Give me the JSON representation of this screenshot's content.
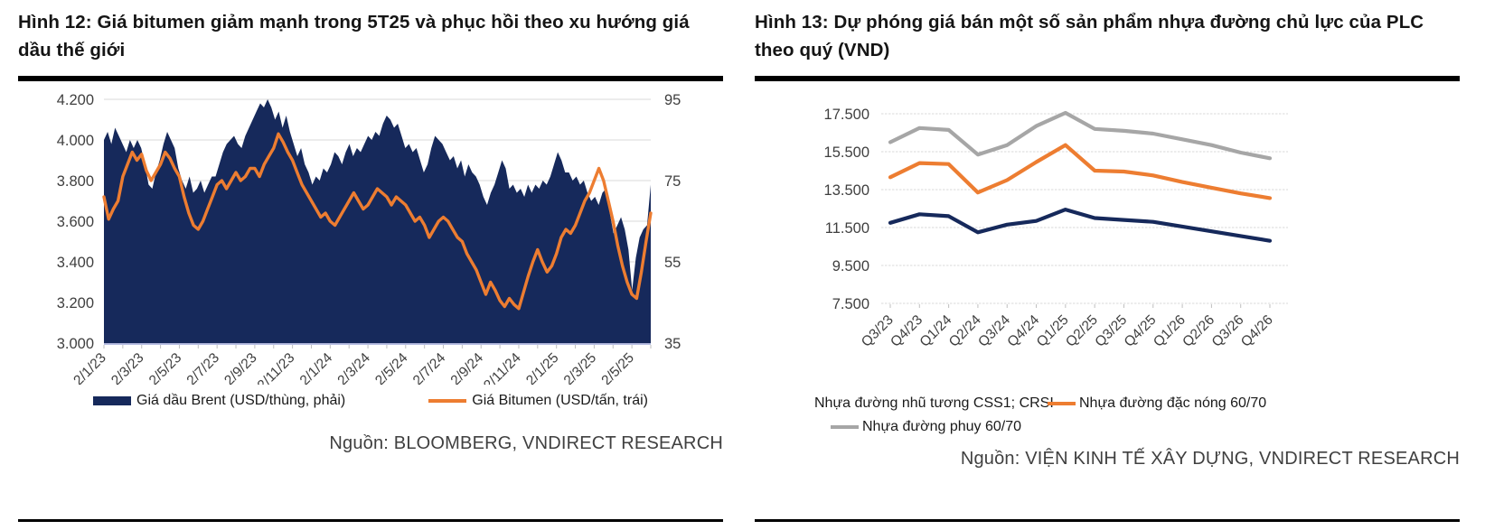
{
  "chart_data": [
    {
      "type": "area",
      "title": "Hình 12: Giá bitumen giảm mạnh trong 5T25 và phục hồi theo xu hướng giá dầu thế giới",
      "source": "Nguồn: BLOOMBERG, VNDIRECT RESEARCH",
      "x_tick_labels": [
        "2/1/23",
        "2/3/23",
        "2/5/23",
        "2/7/23",
        "2/9/23",
        "2/11/23",
        "2/1/24",
        "2/3/24",
        "2/5/24",
        "2/7/24",
        "2/9/24",
        "2/11/24",
        "2/1/25",
        "2/3/25",
        "2/5/25"
      ],
      "left_axis": {
        "labels": [
          "4.200",
          "4.000",
          "3.800",
          "3.600",
          "3.400",
          "3.200",
          "3.000"
        ],
        "min": 3000,
        "max": 4200
      },
      "right_axis": {
        "labels": [
          "95",
          "75",
          "55",
          "35"
        ],
        "min": 35,
        "max": 95
      },
      "grid": true,
      "legend_position": "bottom",
      "series": [
        {
          "name": "Giá dầu Brent (USD/thùng, phải)",
          "type": "area",
          "axis": "right",
          "color": "#16295B",
          "values": [
            85,
            87,
            84,
            88,
            86,
            84,
            82,
            85,
            83,
            85,
            83,
            79,
            74,
            73,
            77,
            80,
            84,
            87,
            85,
            83,
            78,
            75,
            73,
            76,
            72,
            73,
            75,
            72,
            74,
            76,
            76,
            79,
            82,
            84,
            85,
            86,
            84,
            83,
            86,
            88,
            90,
            92,
            94,
            93,
            95,
            93,
            90,
            92,
            88,
            91,
            87,
            84,
            81,
            83,
            79,
            77,
            74,
            76,
            75,
            78,
            77,
            79,
            82,
            81,
            79,
            82,
            84,
            81,
            83,
            82,
            84,
            86,
            85,
            87,
            86,
            89,
            91,
            90,
            88,
            89,
            86,
            83,
            84,
            82,
            83,
            80,
            77,
            79,
            83,
            86,
            85,
            84,
            82,
            80,
            81,
            78,
            80,
            76,
            79,
            77,
            76,
            74,
            71,
            69,
            72,
            74,
            77,
            80,
            78,
            73,
            74,
            72,
            73,
            71,
            74,
            72,
            74,
            73,
            75,
            74,
            76,
            79,
            82,
            80,
            77,
            77,
            75,
            76,
            74,
            75,
            72,
            70,
            71,
            69,
            72,
            73,
            67,
            62,
            64,
            66,
            63,
            58,
            48,
            56,
            61,
            63,
            64,
            74
          ]
        },
        {
          "name": "Giá Bitumen (USD/tấn, trái)",
          "type": "line",
          "axis": "left",
          "color": "#ED7D31",
          "values": [
            3720,
            3610,
            3660,
            3700,
            3820,
            3880,
            3940,
            3900,
            3930,
            3850,
            3800,
            3840,
            3880,
            3940,
            3910,
            3860,
            3820,
            3720,
            3640,
            3580,
            3560,
            3600,
            3660,
            3720,
            3780,
            3800,
            3760,
            3800,
            3840,
            3800,
            3820,
            3860,
            3860,
            3820,
            3880,
            3920,
            3960,
            4030,
            3990,
            3940,
            3900,
            3840,
            3780,
            3740,
            3700,
            3660,
            3620,
            3640,
            3600,
            3580,
            3620,
            3660,
            3700,
            3740,
            3700,
            3660,
            3680,
            3720,
            3760,
            3740,
            3720,
            3680,
            3720,
            3700,
            3680,
            3640,
            3600,
            3620,
            3580,
            3520,
            3560,
            3600,
            3620,
            3600,
            3560,
            3520,
            3500,
            3440,
            3400,
            3360,
            3300,
            3240,
            3300,
            3260,
            3210,
            3180,
            3220,
            3190,
            3170,
            3250,
            3330,
            3400,
            3460,
            3400,
            3350,
            3380,
            3440,
            3520,
            3560,
            3540,
            3580,
            3640,
            3700,
            3740,
            3800,
            3860,
            3800,
            3700,
            3600,
            3480,
            3380,
            3300,
            3240,
            3220,
            3350,
            3500,
            3640
          ]
        }
      ]
    },
    {
      "type": "line",
      "title": "Hình 13: Dự phóng giá bán một số sản phẩm nhựa đường chủ lực của PLC theo quý (VND)",
      "source": "Nguồn: VIỆN KINH TẾ XÂY DỰNG, VNDIRECT RESEARCH",
      "categories": [
        "Q3/23",
        "Q4/23",
        "Q1/24",
        "Q2/24",
        "Q3/24",
        "Q4/24",
        "Q1/25",
        "Q2/25",
        "Q3/25",
        "Q4/25",
        "Q1/26",
        "Q2/26",
        "Q3/26",
        "Q4/26"
      ],
      "y_axis": {
        "labels": [
          "17.500",
          "15.500",
          "13.500",
          "11.500",
          "9.500",
          "7.500"
        ],
        "min": 7500,
        "max": 17500
      },
      "ylim": [
        7500,
        17500
      ],
      "grid": true,
      "legend_position": "bottom",
      "series": [
        {
          "name": "Nhựa đường nhũ tương CSS1; CRSI",
          "color": "#16295B",
          "values": [
            11750,
            12200,
            12100,
            11250,
            11650,
            11850,
            12450,
            12000,
            11900,
            11800,
            11550,
            11300,
            11050,
            10800
          ]
        },
        {
          "name": "Nhựa đường đặc nóng 60/70",
          "color": "#ED7D31",
          "values": [
            14150,
            14900,
            14850,
            13350,
            14000,
            14950,
            15850,
            14500,
            14450,
            14250,
            13900,
            13600,
            13300,
            13050
          ]
        },
        {
          "name": "Nhựa đường phuy 60/70",
          "color": "#A6A6A6",
          "values": [
            16000,
            16750,
            16650,
            15350,
            15850,
            16850,
            17550,
            16700,
            16600,
            16450,
            16150,
            15850,
            15450,
            15150
          ]
        }
      ]
    }
  ],
  "style_colors": {
    "gridline": "#D9D9D9",
    "axis_text": "#3F3F3F",
    "baseline": "#9FA8DA",
    "tick_mark": "#BFBFBF"
  }
}
